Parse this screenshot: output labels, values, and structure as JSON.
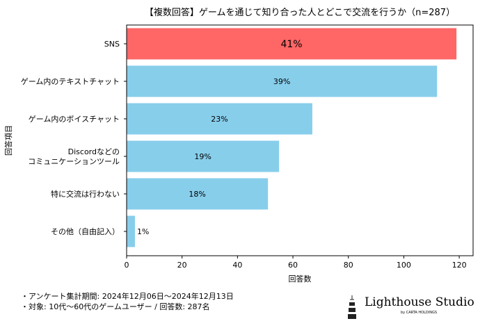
{
  "chart_data": {
    "type": "bar",
    "orientation": "horizontal",
    "title": "【複数回答】ゲームを通じて知り合った人とどこで交流を行うか（n=287）",
    "xlabel": "回答数",
    "ylabel": "回答項目",
    "xlim": [
      0,
      125
    ],
    "xticks": [
      0,
      20,
      40,
      60,
      80,
      100,
      120
    ],
    "grid": false,
    "categories": [
      "SNS",
      "ゲーム内のテキストチャット",
      "ゲーム内のボイスチャット",
      "Discordなどの\nコミュニケーションツール",
      "特に交流は行わない",
      "その他（自由記入）"
    ],
    "values": [
      119,
      112,
      67,
      55,
      51,
      3
    ],
    "data_labels": [
      "41%",
      "39%",
      "23%",
      "19%",
      "18%",
      "1%"
    ],
    "colors": [
      "#ff6666",
      "#87ceeb",
      "#87ceeb",
      "#87ceeb",
      "#87ceeb",
      "#87ceeb"
    ]
  },
  "notes": [
    "・アンケート集計期間: 2024年12月06日〜2024年12月13日",
    "・対象: 10代〜60代のゲームユーザー / 回答数: 287名"
  ],
  "logo": {
    "name": "Lighthouse Studio",
    "sub": "by CARTA HOLDINGS"
  }
}
